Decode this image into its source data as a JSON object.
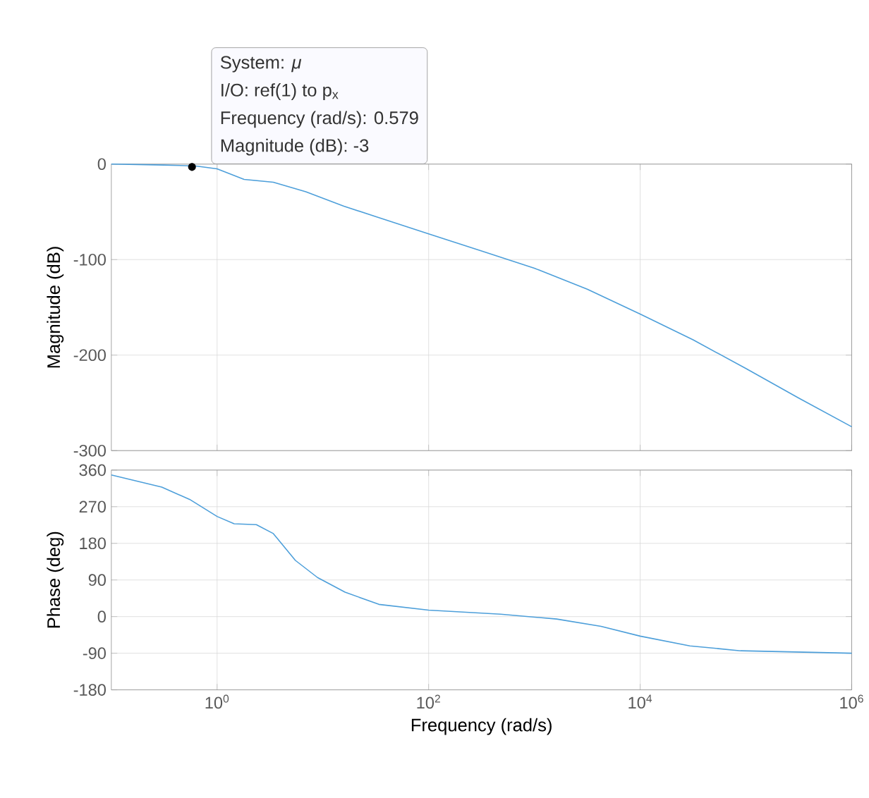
{
  "chart_data": [
    {
      "type": "line",
      "ylabel": "Magnitude (dB)",
      "log": "x",
      "grid": true,
      "tick_labels": "y",
      "annotations": [
        "System: *μ*",
        "I/O: ref(1) to p$_{x}$",
        "Frequency (rad/s): 0.579",
        {
          "text": "Magnitude (dB): -3",
          "x": 0.579,
          "y": -3
        }
      ],
      "xlim": [
        0.1,
        1000000
      ],
      "ylim": [
        -300,
        0
      ],
      "yticks": [
        -300,
        -200,
        -100,
        0
      ],
      "xticks": [
        {
          "value": 1,
          "label": null
        },
        {
          "value": 100,
          "label": null
        },
        {
          "value": 10000,
          "label": null
        },
        {
          "value": 1000000,
          "label": null
        }
      ],
      "series": [
        {
          "color": "#4d9fda",
          "x": [
            0.1,
            0.316,
            0.63,
            1,
            1.8,
            3.4,
            6.9,
            15.8,
            31.6,
            100,
            316,
            1000,
            3162,
            10000,
            31623,
            100000,
            316228,
            1000000
          ],
          "values": [
            0,
            -1,
            -2,
            -5,
            -16,
            -19,
            -29,
            -44,
            -55,
            -73,
            -91,
            -109,
            -131,
            -157,
            -184,
            -214,
            -245,
            -275
          ]
        }
      ]
    },
    {
      "type": "line",
      "xlabel": "Frequency  (rad/s)",
      "ylabel": "Phase (deg)",
      "log": "x",
      "grid": true,
      "xlim": [
        0.1,
        1000000
      ],
      "ylim": [
        -180,
        360
      ],
      "yticks": [
        -180,
        -90,
        0,
        90,
        180,
        270,
        360
      ],
      "xticks": [
        {
          "value": 1,
          "label": "10$^{0}$"
        },
        {
          "value": 100,
          "label": "10$^{2}$"
        },
        {
          "value": 10000,
          "label": "10$^{4}$"
        },
        {
          "value": 1000000,
          "label": "10$^{6}$"
        }
      ],
      "series": [
        {
          "color": "#4d9fda",
          "x": [
            0.1,
            0.3,
            0.55,
            1,
            1.45,
            2.35,
            3.4,
            5.5,
            8.9,
            16.2,
            33.9,
            100,
            479,
            1622,
            4266,
            10000,
            29512,
            89125,
            1000000
          ],
          "values": [
            348,
            318,
            288,
            246,
            228,
            226,
            204,
            138,
            96,
            60,
            30,
            16,
            6,
            -6,
            -24,
            -48,
            -72,
            -84,
            -90
          ]
        }
      ]
    }
  ]
}
